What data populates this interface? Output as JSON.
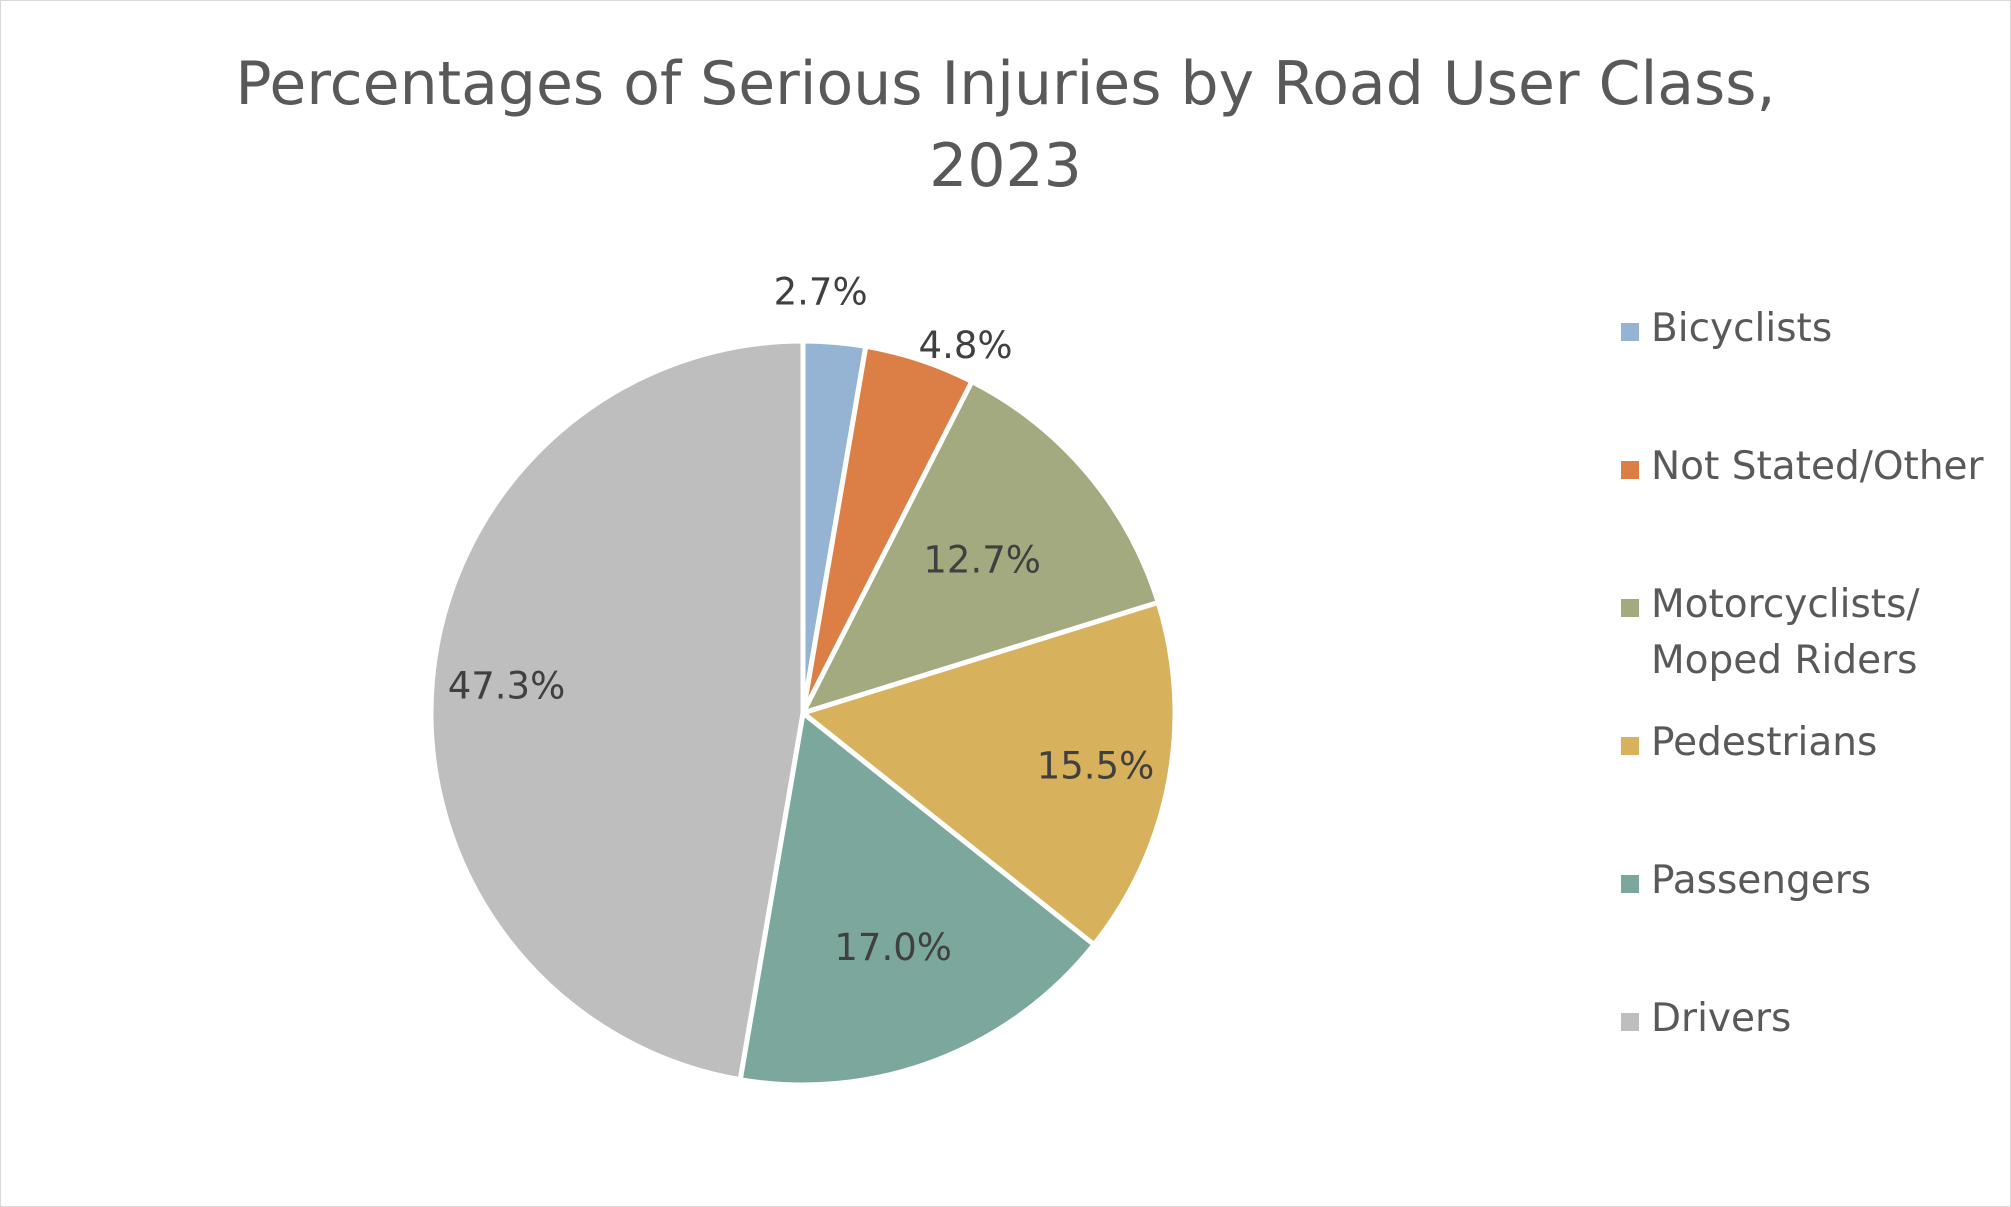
{
  "chart_data": {
    "type": "pie",
    "title_lines": [
      "Percentages of Serious Injuries by Road User Class,",
      "2023"
    ],
    "slices": [
      {
        "label": "Bicyclists",
        "value": 2.7,
        "value_label": "2.7%",
        "color": "#95b3d2"
      },
      {
        "label": "Not Stated/Other",
        "value": 4.8,
        "value_label": "4.8%",
        "color": "#dc7f47"
      },
      {
        "label": "Motorcyclists/ Moped Riders",
        "label_lines": [
          "Motorcyclists/",
          "Moped Riders"
        ],
        "value": 12.7,
        "value_label": "12.7%",
        "color": "#a3aa80"
      },
      {
        "label": "Pedestrians",
        "value": 15.5,
        "value_label": "15.5%",
        "color": "#d8b15c"
      },
      {
        "label": "Passengers",
        "value": 17.0,
        "value_label": "17.0%",
        "color": "#7ca79c"
      },
      {
        "label": "Drivers",
        "value": 47.3,
        "value_label": "47.3%",
        "color": "#bebebe"
      }
    ],
    "start_angle_deg": 0,
    "direction": "clockwise",
    "legend_position": "right",
    "slice_border_color": "#ffffff"
  }
}
